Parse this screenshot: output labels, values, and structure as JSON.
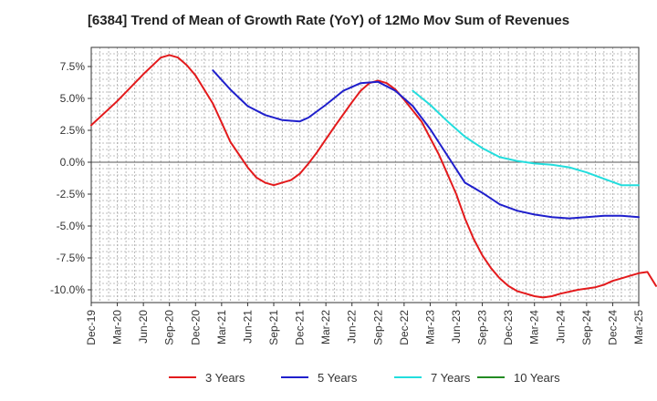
{
  "chart_data": {
    "type": "line",
    "title": "[6384]  Trend of Mean of Growth Rate (YoY) of 12Mo Mov Sum of Revenues",
    "xlabel": "",
    "ylabel": "",
    "x_ticks": [
      "Dec-19",
      "Mar-20",
      "Jun-20",
      "Sep-20",
      "Dec-20",
      "Mar-21",
      "Jun-21",
      "Sep-21",
      "Dec-21",
      "Mar-22",
      "Jun-22",
      "Sep-22",
      "Dec-22",
      "Mar-23",
      "Jun-23",
      "Sep-23",
      "Dec-23",
      "Mar-24",
      "Jun-24",
      "Sep-24",
      "Dec-24",
      "Mar-25"
    ],
    "y_ticks": [
      7.5,
      5.0,
      2.5,
      0.0,
      -2.5,
      -5.0,
      -7.5,
      -10.0
    ],
    "y_tick_labels": [
      "7.5%",
      "5.0%",
      "2.5%",
      "0.0%",
      "-2.5%",
      "-5.0%",
      "-7.5%",
      "-10.0%"
    ],
    "ylim": [
      -11.0,
      9.0
    ],
    "x_range_months": [
      0,
      63
    ],
    "grid": true,
    "legend_position": "bottom",
    "series": [
      {
        "name": "3 Years",
        "color": "#e31a1c",
        "x": [
          0,
          3,
          6,
          8,
          9,
          10,
          11,
          12,
          14,
          15,
          16,
          18,
          19,
          20,
          21,
          23,
          24,
          25,
          26,
          27,
          28,
          30,
          31,
          32,
          33,
          34,
          35,
          36,
          38,
          40,
          42,
          43,
          44,
          45,
          46,
          47,
          48,
          49,
          50,
          51,
          52,
          53,
          54,
          56,
          58,
          59,
          60,
          61,
          62,
          63,
          64,
          65
        ],
        "values": [
          2.9,
          4.8,
          6.9,
          8.2,
          8.4,
          8.2,
          7.6,
          6.8,
          4.6,
          3.1,
          1.6,
          -0.4,
          -1.2,
          -1.6,
          -1.8,
          -1.4,
          -0.9,
          -0.1,
          0.8,
          1.8,
          2.8,
          4.7,
          5.6,
          6.2,
          6.4,
          6.2,
          5.7,
          4.9,
          3.2,
          0.6,
          -2.5,
          -4.4,
          -6.0,
          -7.3,
          -8.3,
          -9.1,
          -9.7,
          -10.1,
          -10.3,
          -10.5,
          -10.6,
          -10.5,
          -10.3,
          -10.0,
          -9.8,
          -9.6,
          -9.3,
          -9.1,
          -8.9,
          -8.7,
          -8.6,
          -9.7
        ]
      },
      {
        "name": "5 Years",
        "color": "#1f1fcc",
        "x": [
          14,
          16,
          18,
          20,
          22,
          24,
          25,
          26,
          27,
          29,
          31,
          33,
          35,
          37,
          39,
          41,
          43,
          45,
          47,
          49,
          51,
          53,
          55,
          57,
          59,
          61,
          63
        ],
        "values": [
          7.2,
          5.7,
          4.4,
          3.7,
          3.3,
          3.2,
          3.5,
          4.0,
          4.5,
          5.6,
          6.2,
          6.3,
          5.6,
          4.4,
          2.6,
          0.5,
          -1.6,
          -2.4,
          -3.3,
          -3.8,
          -4.1,
          -4.3,
          -4.4,
          -4.3,
          -4.2,
          -4.2,
          -4.3
        ]
      },
      {
        "name": "7 Years",
        "color": "#22dddd",
        "x": [
          37,
          39,
          41,
          43,
          45,
          47,
          49,
          51,
          53,
          55,
          57,
          59,
          61,
          63
        ],
        "values": [
          5.6,
          4.5,
          3.2,
          2.0,
          1.1,
          0.4,
          0.1,
          -0.1,
          -0.2,
          -0.4,
          -0.8,
          -1.3,
          -1.8,
          -1.8
        ]
      },
      {
        "name": "10 Years",
        "color": "#228b22",
        "x": [],
        "values": []
      }
    ]
  }
}
